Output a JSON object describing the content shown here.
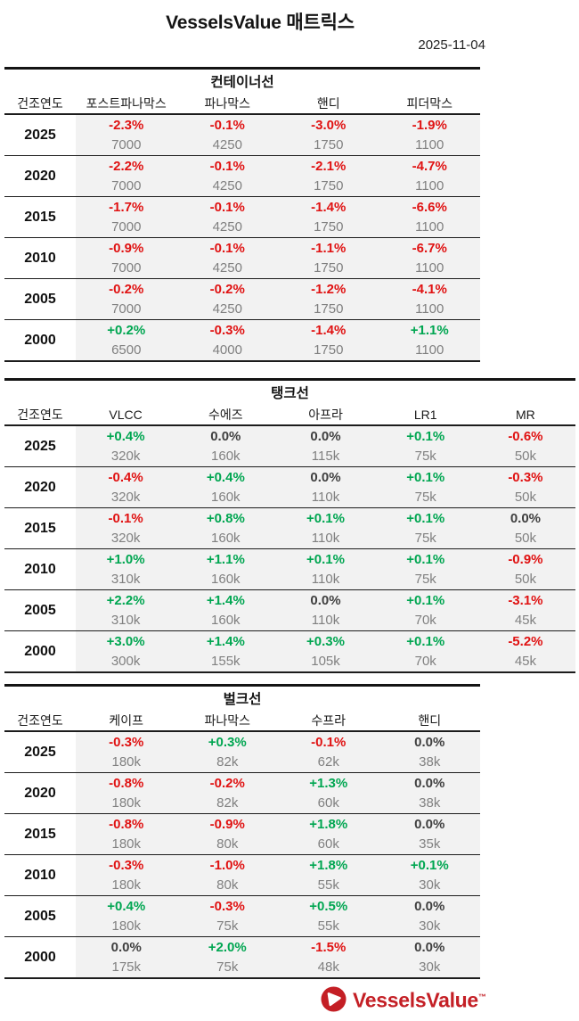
{
  "header": {
    "title": "VesselsValue 매트릭스",
    "date": "2025-11-04"
  },
  "year_header": "건조연도",
  "colors": {
    "pos": "#00a651",
    "neg": "#e01212",
    "flat": "#404040",
    "value_gray": "#808080",
    "brand_red": "#c41f25",
    "row_bg": "#f2f2f2"
  },
  "tables": [
    {
      "title": "컨테이너선",
      "columns": [
        "포스트파나막스",
        "파나막스",
        "핸디",
        "피더막스"
      ],
      "rows": [
        {
          "year": "2025",
          "cells": [
            {
              "pct": "-2.3%",
              "value": "7000"
            },
            {
              "pct": "-0.1%",
              "value": "4250"
            },
            {
              "pct": "-3.0%",
              "value": "1750"
            },
            {
              "pct": "-1.9%",
              "value": "1100"
            }
          ]
        },
        {
          "year": "2020",
          "cells": [
            {
              "pct": "-2.2%",
              "value": "7000"
            },
            {
              "pct": "-0.1%",
              "value": "4250"
            },
            {
              "pct": "-2.1%",
              "value": "1750"
            },
            {
              "pct": "-4.7%",
              "value": "1100"
            }
          ]
        },
        {
          "year": "2015",
          "cells": [
            {
              "pct": "-1.7%",
              "value": "7000"
            },
            {
              "pct": "-0.1%",
              "value": "4250"
            },
            {
              "pct": "-1.4%",
              "value": "1750"
            },
            {
              "pct": "-6.6%",
              "value": "1100"
            }
          ]
        },
        {
          "year": "2010",
          "cells": [
            {
              "pct": "-0.9%",
              "value": "7000"
            },
            {
              "pct": "-0.1%",
              "value": "4250"
            },
            {
              "pct": "-1.1%",
              "value": "1750"
            },
            {
              "pct": "-6.7%",
              "value": "1100"
            }
          ]
        },
        {
          "year": "2005",
          "cells": [
            {
              "pct": "-0.2%",
              "value": "7000"
            },
            {
              "pct": "-0.2%",
              "value": "4250"
            },
            {
              "pct": "-1.2%",
              "value": "1750"
            },
            {
              "pct": "-4.1%",
              "value": "1100"
            }
          ]
        },
        {
          "year": "2000",
          "cells": [
            {
              "pct": "+0.2%",
              "value": "6500"
            },
            {
              "pct": "-0.3%",
              "value": "4000"
            },
            {
              "pct": "-1.4%",
              "value": "1750"
            },
            {
              "pct": "+1.1%",
              "value": "1100"
            }
          ]
        }
      ]
    },
    {
      "title": "탱크선",
      "columns": [
        "VLCC",
        "수에즈",
        "아프라",
        "LR1",
        "MR"
      ],
      "rows": [
        {
          "year": "2025",
          "cells": [
            {
              "pct": "+0.4%",
              "value": "320k"
            },
            {
              "pct": "0.0%",
              "value": "160k"
            },
            {
              "pct": "0.0%",
              "value": "115k"
            },
            {
              "pct": "+0.1%",
              "value": "75k"
            },
            {
              "pct": "-0.6%",
              "value": "50k"
            }
          ]
        },
        {
          "year": "2020",
          "cells": [
            {
              "pct": "-0.4%",
              "value": "320k"
            },
            {
              "pct": "+0.4%",
              "value": "160k"
            },
            {
              "pct": "0.0%",
              "value": "110k"
            },
            {
              "pct": "+0.1%",
              "value": "75k"
            },
            {
              "pct": "-0.3%",
              "value": "50k"
            }
          ]
        },
        {
          "year": "2015",
          "cells": [
            {
              "pct": "-0.1%",
              "value": "320k"
            },
            {
              "pct": "+0.8%",
              "value": "160k"
            },
            {
              "pct": "+0.1%",
              "value": "110k"
            },
            {
              "pct": "+0.1%",
              "value": "75k"
            },
            {
              "pct": "0.0%",
              "value": "50k"
            }
          ]
        },
        {
          "year": "2010",
          "cells": [
            {
              "pct": "+1.0%",
              "value": "310k"
            },
            {
              "pct": "+1.1%",
              "value": "160k"
            },
            {
              "pct": "+0.1%",
              "value": "110k"
            },
            {
              "pct": "+0.1%",
              "value": "75k"
            },
            {
              "pct": "-0.9%",
              "value": "50k"
            }
          ]
        },
        {
          "year": "2005",
          "cells": [
            {
              "pct": "+2.2%",
              "value": "310k"
            },
            {
              "pct": "+1.4%",
              "value": "160k"
            },
            {
              "pct": "0.0%",
              "value": "110k"
            },
            {
              "pct": "+0.1%",
              "value": "70k"
            },
            {
              "pct": "-3.1%",
              "value": "45k"
            }
          ]
        },
        {
          "year": "2000",
          "cells": [
            {
              "pct": "+3.0%",
              "value": "300k"
            },
            {
              "pct": "+1.4%",
              "value": "155k"
            },
            {
              "pct": "+0.3%",
              "value": "105k"
            },
            {
              "pct": "+0.1%",
              "value": "70k"
            },
            {
              "pct": "-5.2%",
              "value": "45k"
            }
          ]
        }
      ]
    },
    {
      "title": "벌크선",
      "columns": [
        "케이프",
        "파나막스",
        "수프라",
        "핸디"
      ],
      "rows": [
        {
          "year": "2025",
          "cells": [
            {
              "pct": "-0.3%",
              "value": "180k"
            },
            {
              "pct": "+0.3%",
              "value": "82k"
            },
            {
              "pct": "-0.1%",
              "value": "62k"
            },
            {
              "pct": "0.0%",
              "value": "38k"
            }
          ]
        },
        {
          "year": "2020",
          "cells": [
            {
              "pct": "-0.8%",
              "value": "180k"
            },
            {
              "pct": "-0.2%",
              "value": "82k"
            },
            {
              "pct": "+1.3%",
              "value": "60k"
            },
            {
              "pct": "0.0%",
              "value": "38k"
            }
          ]
        },
        {
          "year": "2015",
          "cells": [
            {
              "pct": "-0.8%",
              "value": "180k"
            },
            {
              "pct": "-0.9%",
              "value": "80k"
            },
            {
              "pct": "+1.8%",
              "value": "60k"
            },
            {
              "pct": "0.0%",
              "value": "35k"
            }
          ]
        },
        {
          "year": "2010",
          "cells": [
            {
              "pct": "-0.3%",
              "value": "180k"
            },
            {
              "pct": "-1.0%",
              "value": "80k"
            },
            {
              "pct": "+1.8%",
              "value": "55k"
            },
            {
              "pct": "+0.1%",
              "value": "30k"
            }
          ]
        },
        {
          "year": "2005",
          "cells": [
            {
              "pct": "+0.4%",
              "value": "180k"
            },
            {
              "pct": "-0.3%",
              "value": "75k"
            },
            {
              "pct": "+0.5%",
              "value": "55k"
            },
            {
              "pct": "0.0%",
              "value": "30k"
            }
          ]
        },
        {
          "year": "2000",
          "cells": [
            {
              "pct": "0.0%",
              "value": "175k"
            },
            {
              "pct": "+2.0%",
              "value": "75k"
            },
            {
              "pct": "-1.5%",
              "value": "48k"
            },
            {
              "pct": "0.0%",
              "value": "30k"
            }
          ]
        }
      ]
    }
  ],
  "footer": {
    "brand": "VesselsValue",
    "trademark": "™",
    "logo_icon": "vesselsvalue-logo"
  }
}
